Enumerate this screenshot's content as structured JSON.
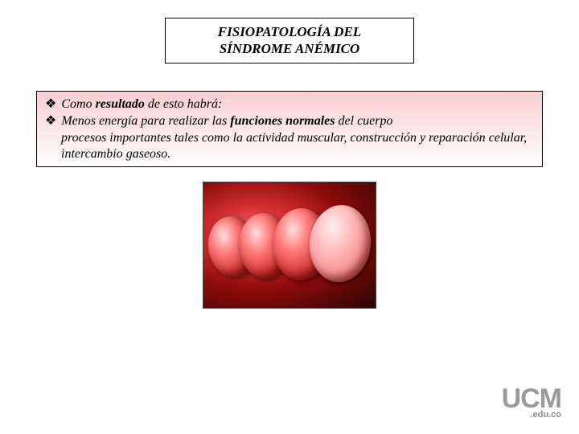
{
  "title": {
    "line1": "FISIOPATOLOGÍA DEL",
    "line2": "SÍNDROME ANÉMICO"
  },
  "bullets": [
    {
      "parts": [
        {
          "text": "Como ",
          "bold": false
        },
        {
          "text": "resultado",
          "bold": true
        },
        {
          "text": " de esto habrá:",
          "bold": false
        }
      ]
    },
    {
      "parts": [
        {
          "text": " Menos energía para realizar las ",
          "bold": false
        },
        {
          "text": "funciones normales",
          "bold": true
        },
        {
          "text": " del cuerpo",
          "bold": false
        }
      ],
      "continuation": "procesos importantes tales como la actividad muscular, construcción y reparación celular, intercambio gaseoso."
    }
  ],
  "bullet_glyph": "❖",
  "logo": {
    "main": "UCM",
    "sub": ".edu.co"
  },
  "colors": {
    "box_gradient_top": "#f7cfd0",
    "box_gradient_bottom": "#fefefe",
    "border": "#000000",
    "logo_color": "#9a9a9a"
  }
}
